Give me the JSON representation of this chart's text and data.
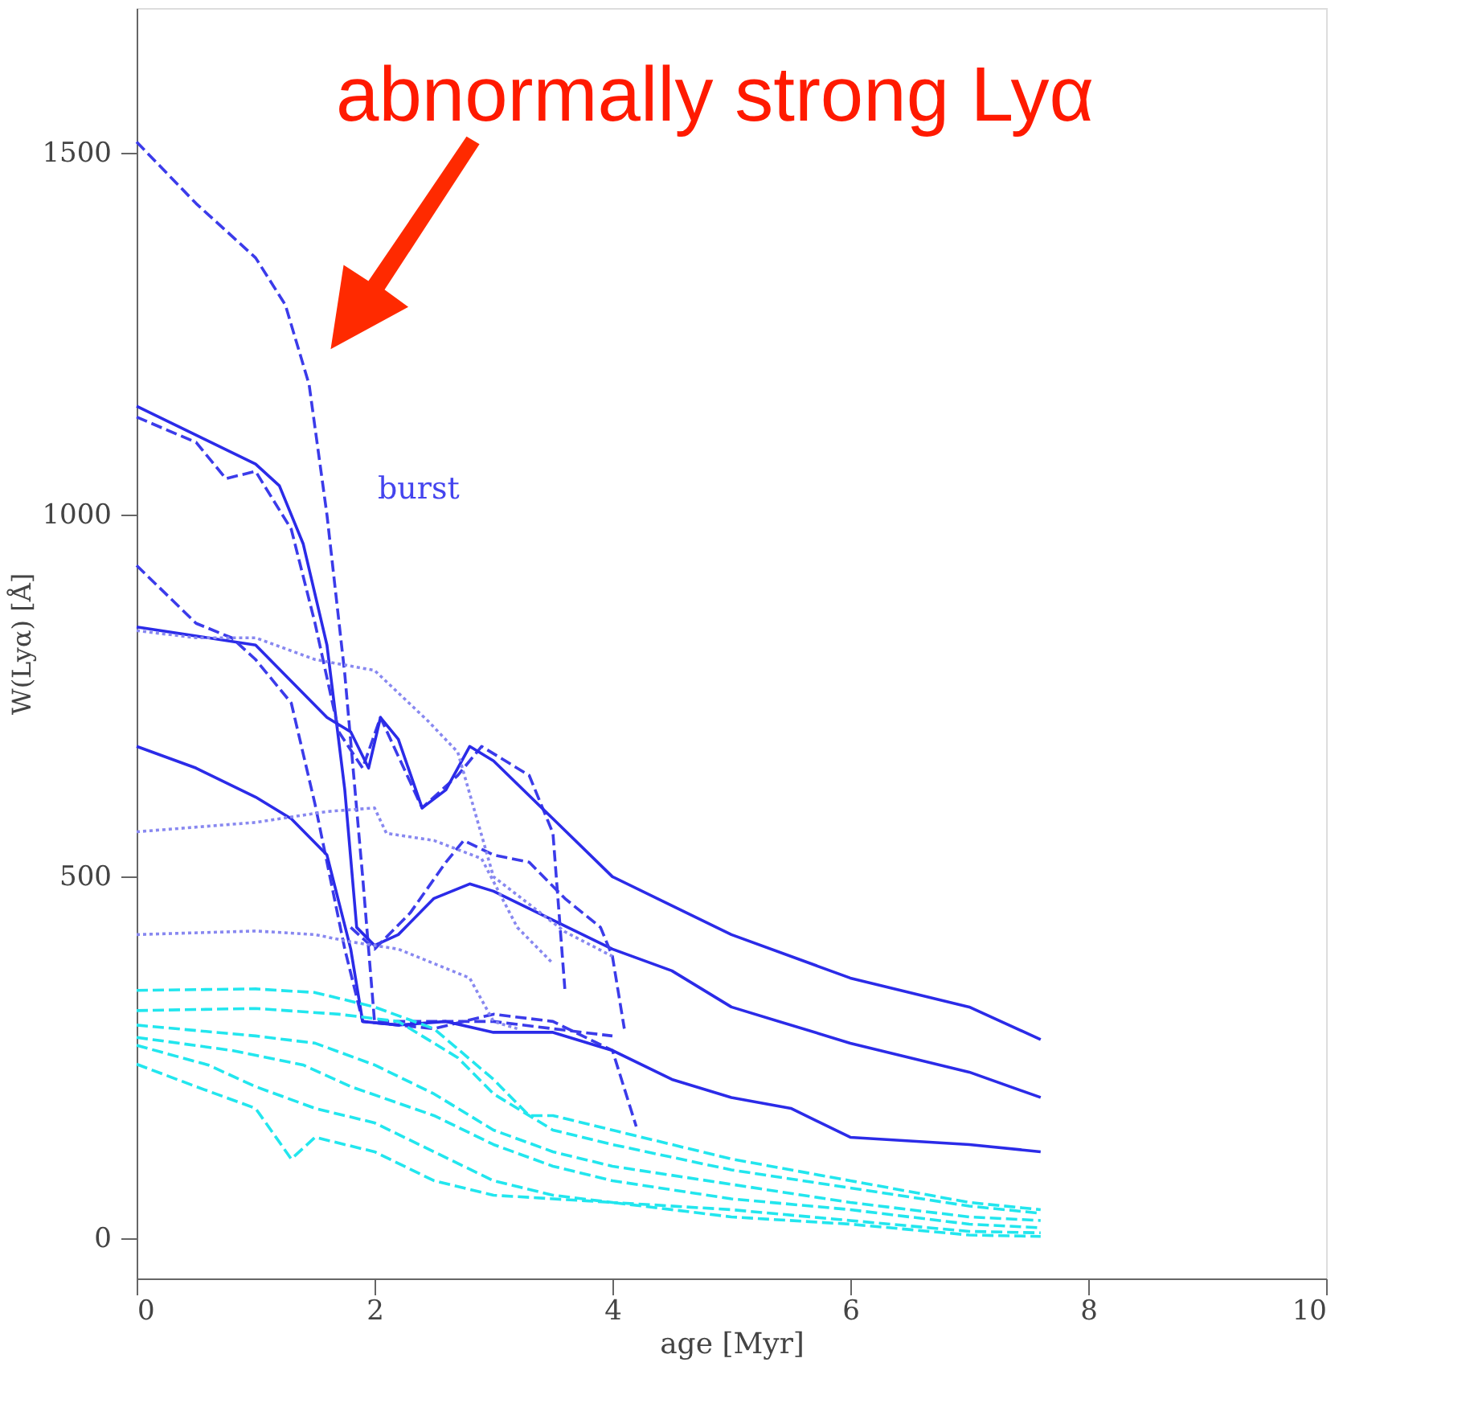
{
  "chart_data": {
    "type": "line",
    "xlabel": "age [Myr]",
    "ylabel": "W(Lyα) [Å]",
    "xlim": [
      0,
      10
    ],
    "ylim": [
      -55,
      1700
    ],
    "xticks": [
      0,
      2,
      4,
      6,
      8,
      10
    ],
    "yticks": [
      0,
      500,
      1000,
      1500
    ],
    "grid": false,
    "marker": "none",
    "annotations": [
      "abnormally strong Lyα",
      "burst"
    ],
    "series": [
      {
        "color": "#3b3bea",
        "line_style": "dashed",
        "x": [
          0,
          0.5,
          1.0,
          1.25,
          1.45,
          1.6,
          1.75,
          1.9,
          2.0,
          2.5,
          3.0,
          3.5,
          4.0
        ],
        "values": [
          1515,
          1430,
          1355,
          1290,
          1180,
          1000,
          780,
          500,
          300,
          300,
          300,
          290,
          280
        ]
      },
      {
        "color": "#2b2be8",
        "line_style": "solid",
        "x": [
          0,
          0.5,
          1.0,
          1.2,
          1.4,
          1.6,
          1.75,
          1.85,
          2.0,
          2.2,
          2.5,
          2.8,
          3.0,
          3.5,
          4.0,
          4.5,
          5.0,
          6.0,
          7.0,
          7.6
        ],
        "values": [
          1150,
          1110,
          1070,
          1040,
          960,
          820,
          620,
          430,
          405,
          420,
          470,
          490,
          480,
          440,
          400,
          370,
          320,
          270,
          230,
          195
        ]
      },
      {
        "color": "#3b3bea",
        "line_style": "dashed",
        "x": [
          0,
          0.5,
          0.75,
          1.0,
          1.3,
          1.5,
          1.7,
          1.9,
          2.05,
          2.4,
          2.7,
          2.9,
          3.3,
          3.5,
          3.6
        ],
        "values": [
          1135,
          1100,
          1050,
          1060,
          980,
          850,
          700,
          650,
          720,
          595,
          640,
          680,
          640,
          560,
          345
        ]
      },
      {
        "color": "#2b2be8",
        "line_style": "solid",
        "x": [
          0,
          1.0,
          1.3,
          1.6,
          1.8,
          1.95,
          2.05,
          2.2,
          2.4,
          2.6,
          2.8,
          3.0,
          3.5,
          4.0,
          4.5,
          5.0,
          6.0,
          7.0,
          7.6
        ],
        "values": [
          845,
          820,
          770,
          720,
          700,
          650,
          720,
          690,
          595,
          620,
          680,
          660,
          580,
          500,
          460,
          420,
          360,
          320,
          275
        ]
      },
      {
        "color": "#3b3bea",
        "line_style": "dashed",
        "x": [
          0,
          0.5,
          0.8,
          1.0,
          1.3,
          1.5,
          1.75,
          1.9,
          2.5,
          3.0,
          3.5,
          4.0,
          4.2
        ],
        "values": [
          930,
          850,
          830,
          800,
          740,
          600,
          400,
          300,
          290,
          310,
          300,
          260,
          155
        ]
      },
      {
        "color": "#3b3bea",
        "line_style": "dashed",
        "x": [
          1.8,
          2.0,
          2.3,
          2.6,
          2.75,
          3.0,
          3.3,
          3.6,
          3.9,
          4.0,
          4.1
        ],
        "values": [
          430,
          400,
          450,
          520,
          550,
          530,
          520,
          470,
          430,
          390,
          290
        ]
      },
      {
        "color": "#2b2be8",
        "line_style": "solid",
        "x": [
          0,
          0.5,
          1.0,
          1.3,
          1.6,
          1.8,
          1.9,
          2.2,
          2.6,
          3.0,
          3.5,
          4.0,
          4.5,
          5.0,
          5.5,
          6.0,
          7.0,
          7.6
        ],
        "values": [
          680,
          650,
          610,
          580,
          530,
          400,
          300,
          295,
          300,
          285,
          285,
          260,
          220,
          195,
          180,
          140,
          130,
          120
        ]
      },
      {
        "color": "#8888f0",
        "line_style": "dotted",
        "x": [
          0,
          0.5,
          1.0,
          1.5,
          2.0,
          2.45,
          2.7,
          3.0,
          3.6,
          4.0
        ],
        "values": [
          840,
          830,
          830,
          800,
          785,
          715,
          672,
          500,
          424,
          390
        ]
      },
      {
        "color": "#8888f0",
        "line_style": "dotted",
        "x": [
          0,
          1.0,
          1.6,
          2.0,
          2.1,
          2.5,
          2.9,
          3.2,
          3.5
        ],
        "values": [
          562,
          575,
          590,
          595,
          560,
          550,
          525,
          430,
          380
        ]
      },
      {
        "color": "#8888f0",
        "line_style": "dotted",
        "x": [
          0,
          1.0,
          1.5,
          1.8,
          2.2,
          2.5,
          2.8,
          3.0,
          3.2
        ],
        "values": [
          420,
          425,
          420,
          410,
          400,
          380,
          360,
          300,
          290
        ]
      },
      {
        "color": "#22e6ee",
        "line_style": "dashed",
        "x": [
          0,
          1.0,
          1.5,
          2.0,
          2.5,
          3.0,
          3.3,
          3.5,
          4.0,
          5.0,
          6.0,
          7.0,
          7.6
        ],
        "values": [
          343,
          345,
          340,
          320,
          290,
          220,
          170,
          170,
          150,
          110,
          80,
          50,
          40
        ]
      },
      {
        "color": "#22e6ee",
        "line_style": "dashed",
        "x": [
          0,
          1.0,
          1.7,
          2.2,
          2.7,
          3.0,
          3.5,
          4.0,
          5.0,
          6.0,
          7.0,
          7.6
        ],
        "values": [
          315,
          318,
          310,
          300,
          250,
          200,
          150,
          130,
          95,
          70,
          45,
          35
        ]
      },
      {
        "color": "#22e6ee",
        "line_style": "dashed",
        "x": [
          0,
          1.0,
          1.5,
          2.0,
          2.5,
          3.0,
          3.5,
          4.0,
          5.0,
          6.0,
          7.0,
          7.6
        ],
        "values": [
          295,
          280,
          270,
          240,
          200,
          150,
          120,
          100,
          75,
          50,
          30,
          25
        ]
      },
      {
        "color": "#22e6ee",
        "line_style": "dashed",
        "x": [
          0,
          0.8,
          1.4,
          1.8,
          2.5,
          3.0,
          3.5,
          4.0,
          5.0,
          6.0,
          7.0,
          7.6
        ],
        "values": [
          278,
          260,
          240,
          210,
          170,
          130,
          100,
          80,
          55,
          40,
          20,
          15
        ]
      },
      {
        "color": "#22e6ee",
        "line_style": "dashed",
        "x": [
          0,
          0.6,
          1.0,
          1.5,
          2.0,
          2.5,
          3.0,
          3.5,
          4.0,
          5.0,
          6.0,
          7.0,
          7.6
        ],
        "values": [
          267,
          240,
          210,
          180,
          160,
          120,
          80,
          60,
          50,
          40,
          25,
          10,
          8
        ]
      },
      {
        "color": "#22e6ee",
        "line_style": "dashed",
        "x": [
          0,
          0.5,
          1.0,
          1.3,
          1.5,
          2.0,
          2.5,
          3.0,
          3.5,
          4.0,
          5.0,
          6.0,
          7.0,
          7.6
        ],
        "values": [
          241,
          210,
          180,
          110,
          140,
          120,
          80,
          60,
          55,
          50,
          30,
          20,
          5,
          3
        ]
      }
    ]
  }
}
